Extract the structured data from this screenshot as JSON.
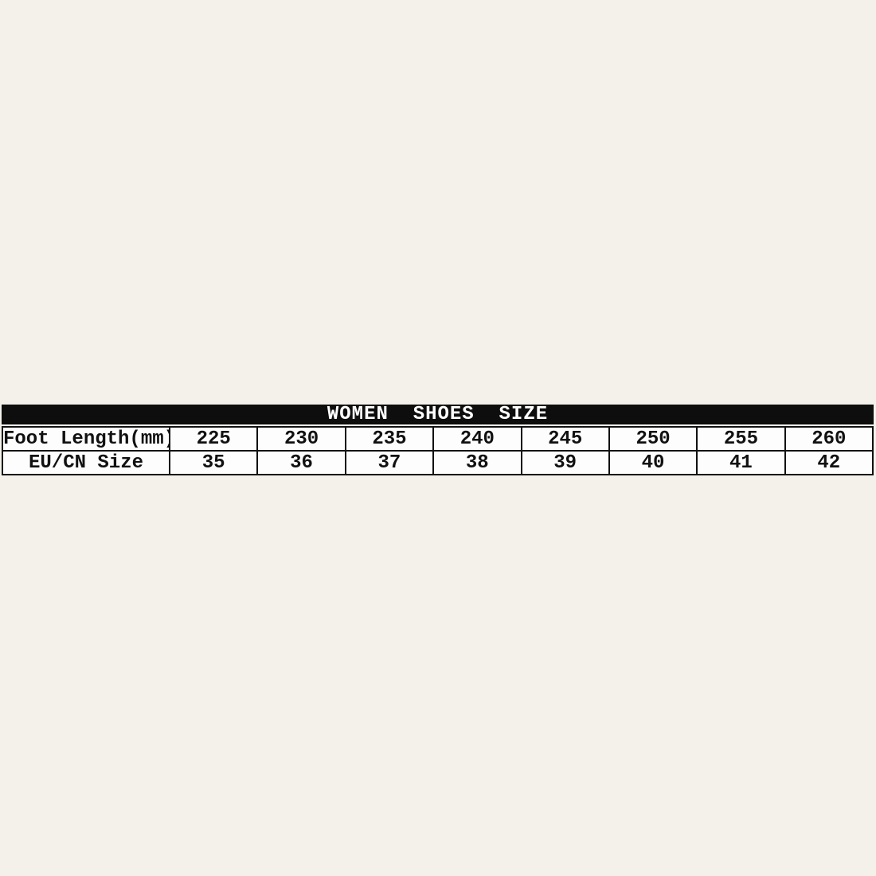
{
  "page": {
    "background_color": "#f4f1ea"
  },
  "size_chart": {
    "title": "WOMEN  SHOES  SIZE",
    "colors": {
      "title_bar_bg": "#0e0e0e",
      "title_text": "#ffffff",
      "border": "#111111",
      "cell_bg": "#fdfdfd",
      "cell_text": "#111111"
    },
    "rows": [
      {
        "label": "Foot Length(mm)",
        "values": [
          "225",
          "230",
          "235",
          "240",
          "245",
          "250",
          "255",
          "260"
        ]
      },
      {
        "label": "EU/CN Size",
        "values": [
          "35",
          "36",
          "37",
          "38",
          "39",
          "40",
          "41",
          "42"
        ]
      }
    ]
  },
  "chart_data": {
    "type": "table",
    "title": "WOMEN SHOES SIZE",
    "rows": [
      {
        "header": "Foot Length(mm)",
        "values": [
          225,
          230,
          235,
          240,
          245,
          250,
          255,
          260
        ]
      },
      {
        "header": "EU/CN Size",
        "values": [
          35,
          36,
          37,
          38,
          39,
          40,
          41,
          42
        ]
      }
    ],
    "layout": "two-row matrix, first column is row header, black title band above grid"
  }
}
